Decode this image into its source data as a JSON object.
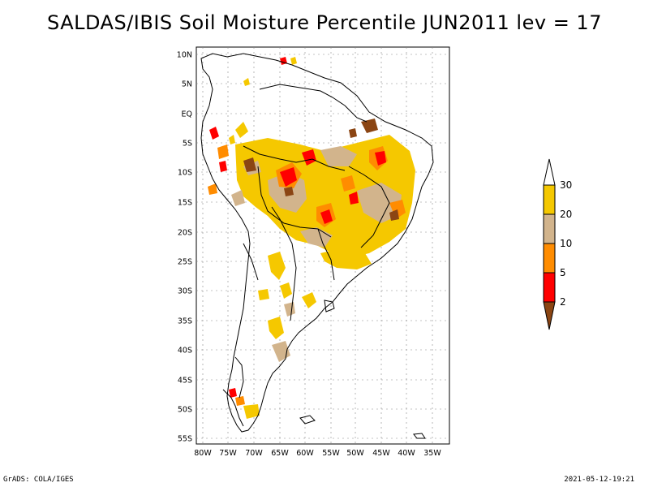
{
  "map": {
    "title": "SALDAS/IBIS Soil Moisture Percentile JUN2011 lev = 17",
    "lat_labels": [
      "10N",
      "5N",
      "EQ",
      "5S",
      "10S",
      "15S",
      "20S",
      "25S",
      "30S",
      "35S",
      "40S",
      "45S",
      "50S",
      "55S"
    ],
    "lon_labels": [
      "80W",
      "75W",
      "70W",
      "65W",
      "60W",
      "55W",
      "50W",
      "45W",
      "40W",
      "35W"
    ],
    "legend": {
      "labels": [
        "30",
        "20",
        "10",
        "5",
        "2"
      ],
      "colors": {
        "above_30": "#ffffff",
        "p20_30": "#f5c800",
        "p10_20": "#d2b48c",
        "p5_10": "#ff8c00",
        "p2_5": "#ff0000",
        "below_2": "#8b4513"
      }
    }
  },
  "footer": {
    "left": "GrADS: COLA/IGES",
    "right": "2021-05-12-19:21"
  }
}
